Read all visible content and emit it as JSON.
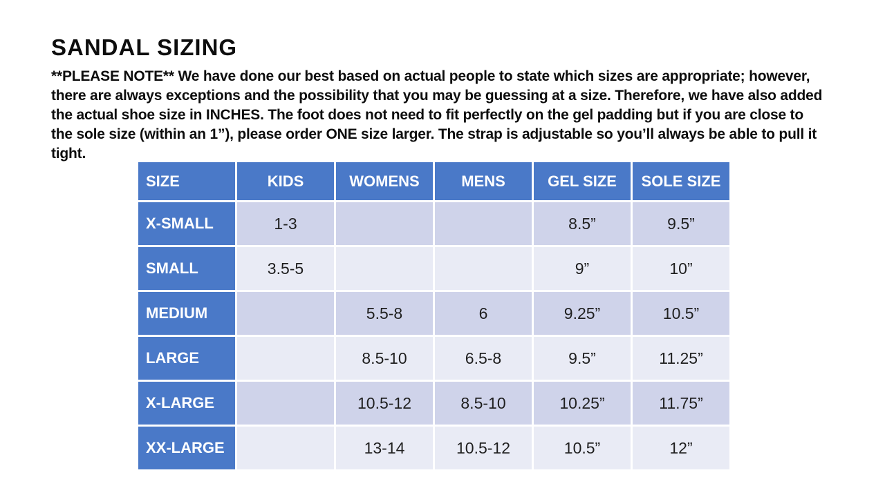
{
  "title": "SANDAL SIZING",
  "note": {
    "text": "**PLEASE NOTE**   We have done our best based on actual people to state which sizes are appropriate; however, there are always exceptions and the possibility that you may be guessing at a size.  Therefore, we have also added the actual shoe size in INCHES.  The foot does not need to fit perfectly on the gel padding but if you are close to the sole size (within an 1”),  please order ONE size larger.  The strap is adjustable so you’ll always be able to pull it tight."
  },
  "table": {
    "headers": [
      "SIZE",
      "KIDS",
      "WOMENS",
      "MENS",
      "GEL SIZE",
      "SOLE SIZE"
    ],
    "rows": [
      [
        "X-SMALL",
        "1-3",
        "",
        "",
        "8.5”",
        "9.5”"
      ],
      [
        "SMALL",
        "3.5-5",
        "",
        "",
        "9”",
        "10”"
      ],
      [
        "MEDIUM",
        "",
        "5.5-8",
        "6",
        "9.25”",
        "10.5”"
      ],
      [
        "LARGE",
        "",
        "8.5-10",
        "6.5-8",
        "9.5”",
        "11.25”"
      ],
      [
        "X-LARGE",
        "",
        "10.5-12",
        "8.5-10",
        "10.25”",
        "11.75”"
      ],
      [
        "XX-LARGE",
        "",
        "13-14",
        "10.5-12",
        "10.5”",
        "12”"
      ]
    ],
    "colors": {
      "header_bg": "#4a79c8",
      "label_bg": "#4a79c8",
      "row_band_dark": "#cfd3ea",
      "row_band_light": "#e9ebf5",
      "header_text": "#ffffff",
      "body_text": "#1f1f1f"
    }
  }
}
